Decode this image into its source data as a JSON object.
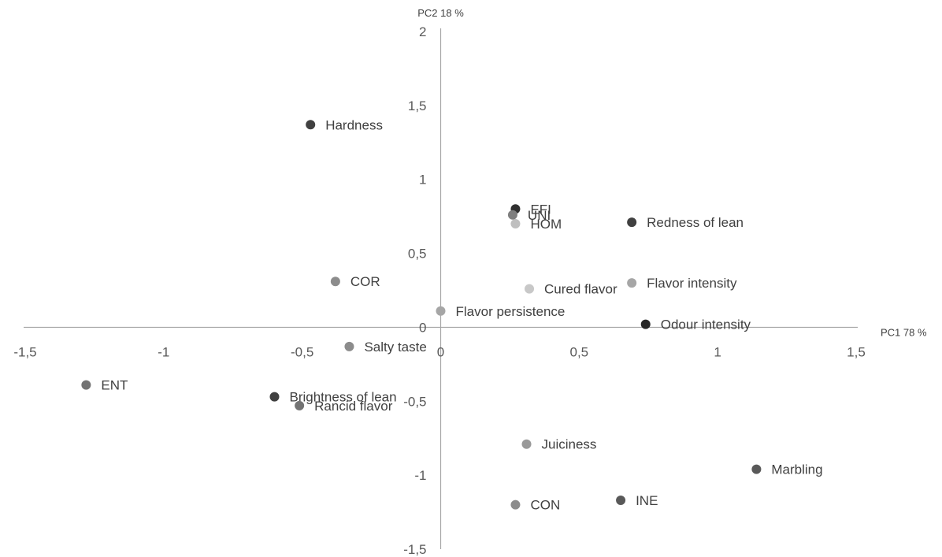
{
  "chart_data": {
    "type": "scatter",
    "title": "",
    "xlabel": "PC1 78 %",
    "ylabel": "PC2 18 %",
    "xlim": [
      -1.5,
      1.5
    ],
    "ylim": [
      -1.5,
      2
    ],
    "x_ticks": [
      -1.5,
      -1,
      -0.5,
      0,
      0.5,
      1,
      1.5
    ],
    "x_tick_labels": [
      "-1,5",
      "-1",
      "-0,5",
      "0",
      "0,5",
      "1",
      "1,5"
    ],
    "y_ticks": [
      -1.5,
      -1,
      -0.5,
      0,
      0.5,
      1,
      1.5,
      2
    ],
    "y_tick_labels": [
      "-1,5",
      "-1",
      "-0,5",
      "0",
      "0,5",
      "1",
      "1,5",
      "2"
    ],
    "grid": false,
    "points": [
      {
        "label": "Hardness",
        "x": -0.47,
        "y": 1.37,
        "color": "#404040"
      },
      {
        "label": "EFI",
        "x": 0.27,
        "y": 0.8,
        "color": "#303030"
      },
      {
        "label": "UNI",
        "x": 0.26,
        "y": 0.76,
        "color": "#7f7f7f"
      },
      {
        "label": "HOM",
        "x": 0.27,
        "y": 0.7,
        "color": "#bfbfbf"
      },
      {
        "label": "Redness of lean",
        "x": 0.69,
        "y": 0.71,
        "color": "#404040"
      },
      {
        "label": "COR",
        "x": -0.38,
        "y": 0.31,
        "color": "#8c8c8c"
      },
      {
        "label": "Cured flavor",
        "x": 0.32,
        "y": 0.26,
        "color": "#c8c8c8"
      },
      {
        "label": "Flavor intensity",
        "x": 0.69,
        "y": 0.3,
        "color": "#a6a6a6"
      },
      {
        "label": "Flavor persistence",
        "x": 0.0,
        "y": 0.11,
        "color": "#a6a6a6"
      },
      {
        "label": "Odour intensity",
        "x": 0.74,
        "y": 0.02,
        "color": "#262626"
      },
      {
        "label": "Salty taste",
        "x": -0.33,
        "y": -0.13,
        "color": "#8c8c8c"
      },
      {
        "label": "ENT",
        "x": -1.28,
        "y": -0.39,
        "color": "#737373"
      },
      {
        "label": "Brightness of lean",
        "x": -0.6,
        "y": -0.47,
        "color": "#404040"
      },
      {
        "label": "Rancid flavor",
        "x": -0.51,
        "y": -0.53,
        "color": "#737373"
      },
      {
        "label": "Juiciness",
        "x": 0.31,
        "y": -0.79,
        "color": "#999999"
      },
      {
        "label": "Marbling",
        "x": 1.14,
        "y": -0.96,
        "color": "#595959"
      },
      {
        "label": "INE",
        "x": 0.65,
        "y": -1.17,
        "color": "#595959"
      },
      {
        "label": "CON",
        "x": 0.27,
        "y": -1.2,
        "color": "#8c8c8c"
      }
    ]
  }
}
